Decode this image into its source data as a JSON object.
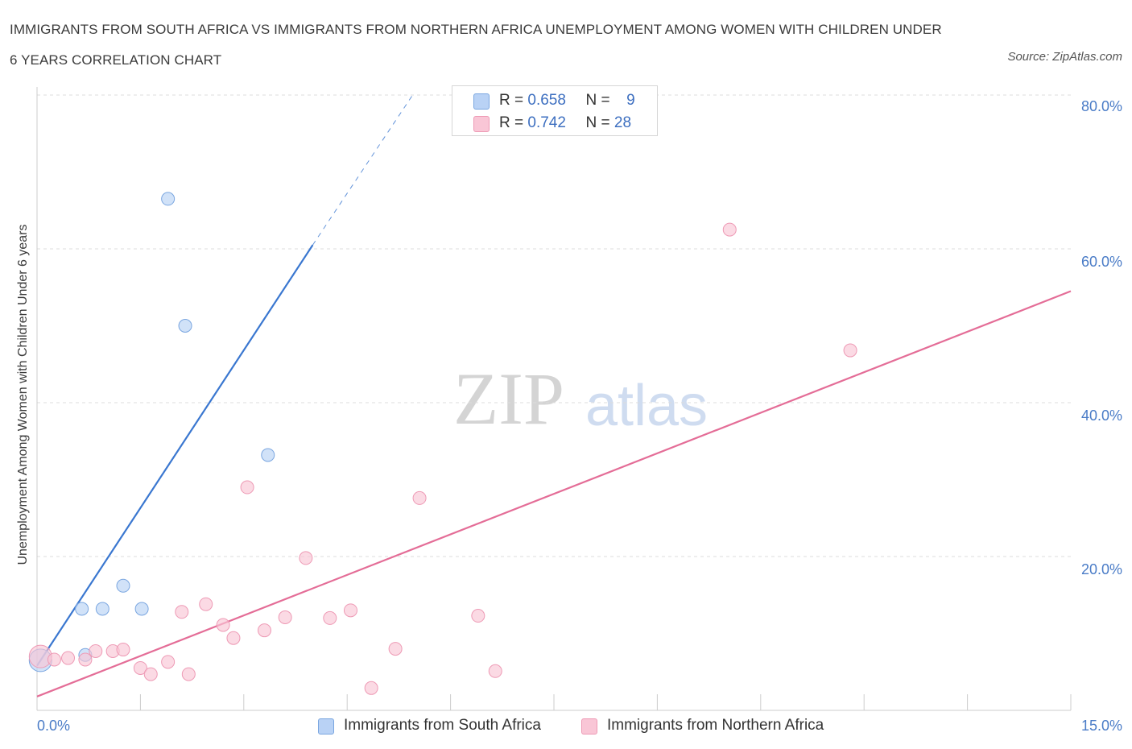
{
  "title": "IMMIGRANTS FROM SOUTH AFRICA VS IMMIGRANTS FROM NORTHERN AFRICA UNEMPLOYMENT AMONG WOMEN WITH CHILDREN UNDER 6 YEARS CORRELATION CHART",
  "source": "Source: ZipAtlas.com",
  "watermark": {
    "zip": "ZIP",
    "atlas": "atlas"
  },
  "colors": {
    "blue_fill": "#b9d2f5",
    "blue_stroke": "#7aa6e0",
    "blue_line": "#3a77d0",
    "pink_fill": "#f9c6d6",
    "pink_stroke": "#ee9ab5",
    "pink_line": "#e46d97",
    "grid": "#dddddd",
    "tick_label": "#4a7cc7"
  },
  "legend": {
    "south": {
      "r_label": "R =",
      "r_value": "0.658",
      "n_label": "N =",
      "n_value": "9"
    },
    "north": {
      "r_label": "R =",
      "r_value": "0.742",
      "n_label": "N =",
      "n_value": "28"
    }
  },
  "chart_data": {
    "type": "scatter",
    "title": "IMMIGRANTS FROM SOUTH AFRICA VS IMMIGRANTS FROM NORTHERN AFRICA UNEMPLOYMENT AMONG WOMEN WITH CHILDREN UNDER 6 YEARS CORRELATION CHART",
    "xlabel": "",
    "ylabel": "Unemployment Among Women with Children Under 6 years",
    "xlim": [
      0,
      15
    ],
    "ylim": [
      0,
      80
    ],
    "x_tick_labels": [
      "0.0%",
      "15.0%"
    ],
    "y_ticks": [
      20,
      40,
      60,
      80
    ],
    "y_tick_labels": [
      "20.0%",
      "40.0%",
      "60.0%",
      "80.0%"
    ],
    "grid": true,
    "series": [
      {
        "name": "Immigrants from South Africa",
        "color": "blue",
        "points": [
          {
            "x": 0.05,
            "y": 6.5,
            "big": true
          },
          {
            "x": 0.7,
            "y": 7.2
          },
          {
            "x": 0.65,
            "y": 13.2
          },
          {
            "x": 0.95,
            "y": 13.2
          },
          {
            "x": 1.25,
            "y": 16.2
          },
          {
            "x": 1.52,
            "y": 13.2
          },
          {
            "x": 1.9,
            "y": 66.5
          },
          {
            "x": 2.15,
            "y": 50.0
          },
          {
            "x": 3.35,
            "y": 33.2
          }
        ],
        "trend": {
          "x0": 0.0,
          "y0": 5.8,
          "x1": 4.0,
          "y1": 60.5,
          "dash_to_x": 5.45,
          "dash_to_y": 80.0
        }
      },
      {
        "name": "Immigrants from Northern Africa",
        "color": "pink",
        "points": [
          {
            "x": 0.05,
            "y": 7.0,
            "big": true
          },
          {
            "x": 0.25,
            "y": 6.6
          },
          {
            "x": 0.45,
            "y": 6.8
          },
          {
            "x": 0.7,
            "y": 6.6
          },
          {
            "x": 0.85,
            "y": 7.7
          },
          {
            "x": 1.1,
            "y": 7.7
          },
          {
            "x": 1.25,
            "y": 7.9
          },
          {
            "x": 1.5,
            "y": 5.5
          },
          {
            "x": 1.65,
            "y": 4.7
          },
          {
            "x": 1.9,
            "y": 6.3
          },
          {
            "x": 2.1,
            "y": 12.8
          },
          {
            "x": 2.2,
            "y": 4.7
          },
          {
            "x": 2.45,
            "y": 13.8
          },
          {
            "x": 2.7,
            "y": 11.1
          },
          {
            "x": 2.85,
            "y": 9.4
          },
          {
            "x": 3.05,
            "y": 29.0
          },
          {
            "x": 3.3,
            "y": 10.4
          },
          {
            "x": 3.6,
            "y": 12.1
          },
          {
            "x": 3.9,
            "y": 19.8
          },
          {
            "x": 4.25,
            "y": 12.0
          },
          {
            "x": 4.55,
            "y": 13.0
          },
          {
            "x": 4.85,
            "y": 2.9
          },
          {
            "x": 5.2,
            "y": 8.0
          },
          {
            "x": 5.55,
            "y": 27.6
          },
          {
            "x": 6.4,
            "y": 12.3
          },
          {
            "x": 6.65,
            "y": 5.1
          },
          {
            "x": 10.05,
            "y": 62.5
          },
          {
            "x": 11.8,
            "y": 46.8
          }
        ],
        "trend": {
          "x0": 0.0,
          "y0": 1.8,
          "x1": 15.0,
          "y1": 54.5
        }
      }
    ]
  },
  "bottom_legend": {
    "south_label": "Immigrants from South Africa",
    "north_label": "Immigrants from Northern Africa"
  }
}
